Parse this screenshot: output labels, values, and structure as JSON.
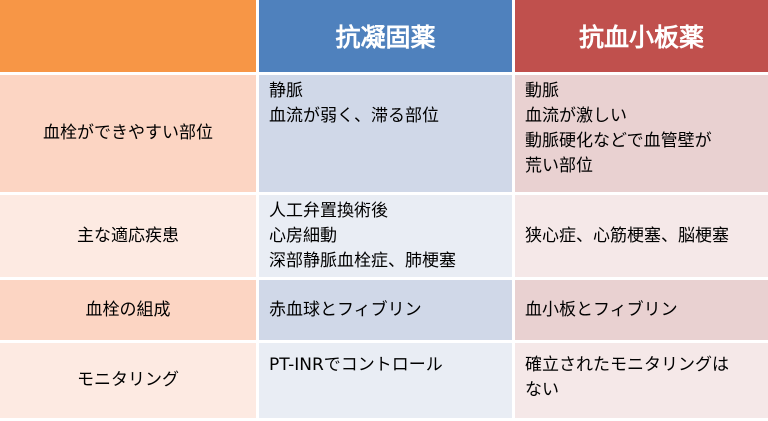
{
  "header": [
    "",
    "抗凝固薬",
    "抗血小板薬"
  ],
  "rows": [
    {
      "label": "血栓ができやすい部位",
      "anticoagulant": [
        "静脈",
        "血流が弱く、滞る部位"
      ],
      "antiplatelet": [
        "動脈",
        "血流が激しい",
        "動脈硬化などで血管壁が",
        "荒い部位"
      ]
    },
    {
      "label": "主な適応疾患",
      "anticoagulant": [
        "人工弁置換術後",
        "心房細動",
        "深部静脈血栓症、肺梗塞"
      ],
      "antiplatelet": [
        "狭心症、心筋梗塞、脳梗塞"
      ]
    },
    {
      "label": "血栓の組成",
      "anticoagulant": [
        "赤血球とフィブリン"
      ],
      "antiplatelet": [
        "血小板とフィブリン"
      ]
    },
    {
      "label": "モニタリング",
      "anticoagulant": [
        "PT-INRでコントロール"
      ],
      "antiplatelet": [
        "確立されたモニタリングは",
        "ない"
      ]
    }
  ],
  "colors": {
    "header_orange": "#F79646",
    "header_blue": "#4F81BD",
    "header_red": "#C0504D"
  }
}
